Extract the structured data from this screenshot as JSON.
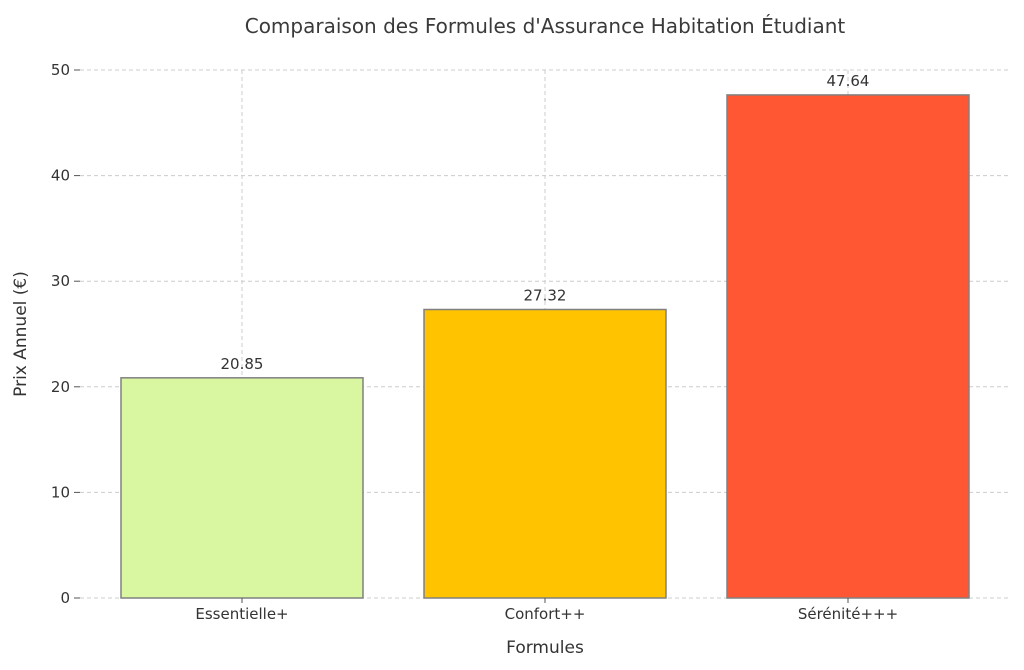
{
  "chart_data": {
    "type": "bar",
    "title": "Comparaison des Formules d'Assurance Habitation Étudiant",
    "xlabel": "Formules",
    "ylabel": "Prix Annuel (€)",
    "categories": [
      "Essentielle+",
      "Confort++",
      "Sérénité+++"
    ],
    "values": [
      20.85,
      27.32,
      47.64
    ],
    "value_labels": [
      "20.85",
      "27.32",
      "47.64"
    ],
    "colors": [
      "#d9f7a0",
      "#ffc300",
      "#ff5733"
    ],
    "edge_color": "#808080",
    "ylim": [
      0,
      50
    ],
    "yticks": [
      0,
      10,
      20,
      30,
      40,
      50
    ],
    "ytick_labels": [
      "0",
      "10",
      "20",
      "30",
      "40",
      "50"
    ],
    "grid": true
  }
}
